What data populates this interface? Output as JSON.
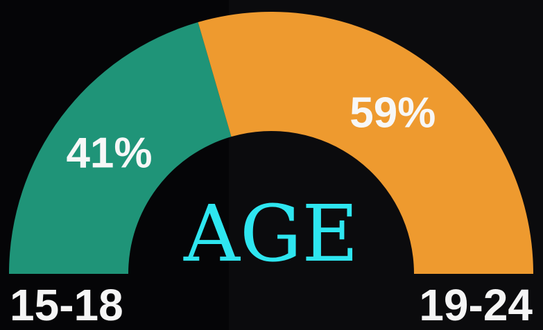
{
  "chart_data": {
    "type": "pie",
    "style": "semi-donut",
    "center_label": "AGE",
    "center_label_color": "#2ee6f0",
    "slices": [
      {
        "label": "15-18",
        "value": 41,
        "display": "41%",
        "color": "#1f9478"
      },
      {
        "label": "19-24",
        "value": 59,
        "display": "59%",
        "color": "#ee9a2f"
      }
    ]
  }
}
